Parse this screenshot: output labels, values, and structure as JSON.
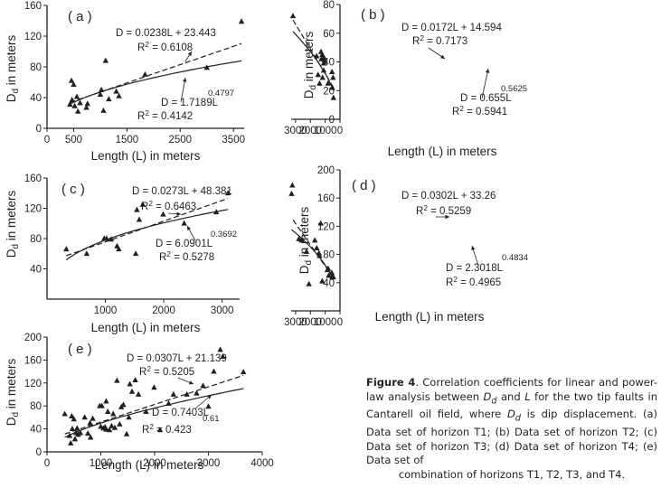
{
  "chart_data": [
    {
      "type": "scatter",
      "panel_label": "( a )",
      "xlabel": "Length (L) in meters",
      "ylabel_main": "D",
      "ylabel_sub": "d",
      "ylabel_rest": " in meters",
      "xlim": [
        0,
        3700
      ],
      "ylim": [
        0,
        160
      ],
      "xticks": [
        0,
        500,
        1500,
        2500,
        3500
      ],
      "xtick_labels": [
        "0",
        "500",
        "1500",
        "2500",
        "3500"
      ],
      "yticks": [
        0,
        40,
        80,
        120,
        160
      ],
      "ytick_labels": [
        "0",
        "40",
        "80",
        "120",
        "160"
      ],
      "points": [
        [
          430,
          31
        ],
        [
          460,
          62
        ],
        [
          470,
          37
        ],
        [
          500,
          57
        ],
        [
          520,
          29
        ],
        [
          560,
          41
        ],
        [
          580,
          22
        ],
        [
          620,
          33
        ],
        [
          740,
          27
        ],
        [
          760,
          32
        ],
        [
          1000,
          44
        ],
        [
          1020,
          50
        ],
        [
          1060,
          23
        ],
        [
          1100,
          88
        ],
        [
          1160,
          38
        ],
        [
          1300,
          48
        ],
        [
          1350,
          42
        ],
        [
          1840,
          70
        ],
        [
          3000,
          79
        ],
        [
          3650,
          139
        ]
      ],
      "linear": {
        "slope": 0.0238,
        "intercept": 23.443,
        "x_range": [
          430,
          3650
        ]
      },
      "power": {
        "coef": 1.7189,
        "exp": 0.4797,
        "x_range": [
          430,
          3650
        ]
      },
      "linear_eq": "D = 0.0238L + 23.443",
      "linear_r2_label": "R",
      "linear_r2_sup": "2",
      "linear_r2_value": " = 0.6108",
      "power_eq": "D = 1.7189L",
      "power_exp_label": "0.4797",
      "power_r2_label": "R",
      "power_r2_sup": "2",
      "power_r2_value": " = 0.4142"
    },
    {
      "type": "scatter",
      "panel_label": "( b )",
      "xlabel": "Length (L) in meters",
      "ylabel_main": "D",
      "ylabel_sub": "d",
      "ylabel_rest": " in meters",
      "xlim": [
        0,
        3300
      ],
      "ylim": [
        0,
        80
      ],
      "xticks": [
        0,
        1000,
        2000,
        3000
      ],
      "xtick_labels": [
        "0",
        "1000",
        "2000",
        "3000"
      ],
      "yticks": [
        0,
        20,
        40,
        60,
        80
      ],
      "ytick_labels": [
        "0",
        "20",
        "40",
        "60",
        "80"
      ],
      "points": [
        [
          440,
          15
        ],
        [
          470,
          29
        ],
        [
          520,
          22
        ],
        [
          540,
          33
        ],
        [
          810,
          25
        ],
        [
          1050,
          41
        ],
        [
          1080,
          43
        ],
        [
          1100,
          39
        ],
        [
          1100,
          34
        ],
        [
          1180,
          29
        ],
        [
          1200,
          45
        ],
        [
          1260,
          42
        ],
        [
          1280,
          47
        ],
        [
          1380,
          25
        ],
        [
          1480,
          31
        ],
        [
          1580,
          44
        ],
        [
          3180,
          72
        ]
      ],
      "linear": {
        "slope": 0.0172,
        "intercept": 14.594,
        "x_range": [
          440,
          3180
        ]
      },
      "power": {
        "coef": 0.655,
        "exp": 0.5625,
        "x_range": [
          440,
          3180
        ]
      },
      "linear_eq": "D = 0.0172L + 14.594",
      "linear_r2_label": "R",
      "linear_r2_sup": "2",
      "linear_r2_value": " = 0.7173",
      "power_eq": "D = 0.655L",
      "power_exp_label": "0.5625",
      "power_r2_label": "R",
      "power_r2_sup": "2",
      "power_r2_value": " = 0.5941"
    },
    {
      "type": "scatter",
      "panel_label": "( c )",
      "xlabel": "Length (L) in meters",
      "ylabel_main": "D",
      "ylabel_sub": "d",
      "ylabel_rest": " in meters",
      "xlim": [
        0,
        3300
      ],
      "ylim": [
        0,
        160
      ],
      "xticks": [
        1000,
        2000,
        3000
      ],
      "xtick_labels": [
        "1000",
        "2000",
        "3000"
      ],
      "yticks": [
        40,
        80,
        120,
        160
      ],
      "ytick_labels": [
        "40",
        "80",
        "120",
        "160"
      ],
      "points": [
        [
          330,
          66
        ],
        [
          680,
          60
        ],
        [
          980,
          80
        ],
        [
          1020,
          80
        ],
        [
          1100,
          79
        ],
        [
          1200,
          70
        ],
        [
          1230,
          66
        ],
        [
          1520,
          60
        ],
        [
          1540,
          118
        ],
        [
          1580,
          105
        ],
        [
          1640,
          125
        ],
        [
          1990,
          112
        ],
        [
          2350,
          100
        ],
        [
          2900,
          115
        ],
        [
          3100,
          140
        ]
      ],
      "linear": {
        "slope": 0.0273,
        "intercept": 48.381,
        "x_range": [
          330,
          3100
        ]
      },
      "power": {
        "coef": 6.0901,
        "exp": 0.3692,
        "x_range": [
          330,
          3100
        ]
      },
      "linear_eq": "D = 0.0273L + 48.381",
      "linear_r2_label": "R",
      "linear_r2_sup": "2",
      "linear_r2_value": " = 0.6463",
      "power_eq": "D = 6.0901L",
      "power_exp_label": "0.3692",
      "power_r2_label": "R",
      "power_r2_sup": "2",
      "power_r2_value": " = 0.5278"
    },
    {
      "type": "scatter",
      "panel_label": "( d )",
      "xlabel": "Length (L) in meters",
      "ylabel_main": "D",
      "ylabel_sub": "d",
      "ylabel_rest": " in meters",
      "xlim": [
        0,
        3300
      ],
      "ylim": [
        0,
        200
      ],
      "xticks": [
        0,
        1000,
        2000,
        3000
      ],
      "xtick_labels": [
        "0",
        "1000",
        "2000",
        "3000"
      ],
      "yticks": [
        40,
        80,
        120,
        160,
        200
      ],
      "ytick_labels": [
        "40",
        "80",
        "120",
        "160",
        "200"
      ],
      "points": [
        [
          450,
          48
        ],
        [
          520,
          48
        ],
        [
          560,
          54
        ],
        [
          760,
          50
        ],
        [
          800,
          60
        ],
        [
          850,
          58
        ],
        [
          1200,
          42
        ],
        [
          1300,
          124
        ],
        [
          1380,
          78
        ],
        [
          1420,
          82
        ],
        [
          1570,
          89
        ],
        [
          1700,
          100
        ],
        [
          2100,
          38
        ],
        [
          2260,
          84
        ],
        [
          2600,
          100
        ],
        [
          2780,
          102
        ],
        [
          3220,
          178
        ],
        [
          3270,
          166
        ]
      ],
      "linear": {
        "slope": 0.0302,
        "intercept": 33.26,
        "x_range": [
          450,
          3270
        ]
      },
      "power": {
        "coef": 2.3018,
        "exp": 0.4834,
        "x_range": [
          450,
          3270
        ]
      },
      "linear_eq": "D = 0.0302L + 33.26",
      "linear_r2_label": "R",
      "linear_r2_sup": "2",
      "linear_r2_value": " = 0.5259",
      "power_eq": "D = 2.3018L",
      "power_exp_label": "0.4834",
      "power_r2_label": "R",
      "power_r2_sup": "2",
      "power_r2_value": " = 0.4965"
    },
    {
      "type": "scatter",
      "panel_label": "( e )",
      "xlabel": "Length (L) in meters",
      "ylabel_main": "D",
      "ylabel_sub": "d",
      "ylabel_rest": " in meters",
      "xlim": [
        0,
        4000
      ],
      "ylim": [
        0,
        200
      ],
      "xticks": [
        0,
        1000,
        2000,
        3000,
        4000
      ],
      "xtick_labels": [
        "0",
        "1000",
        "2000",
        "3000",
        "4000"
      ],
      "yticks": [
        0,
        40,
        80,
        120,
        160,
        200
      ],
      "ytick_labels": [
        "0",
        "40",
        "80",
        "120",
        "160",
        "200"
      ],
      "points": [
        [
          330,
          66
        ],
        [
          420,
          28
        ],
        [
          440,
          15
        ],
        [
          460,
          62
        ],
        [
          470,
          40
        ],
        [
          500,
          57
        ],
        [
          520,
          22
        ],
        [
          540,
          33
        ],
        [
          560,
          41
        ],
        [
          580,
          30
        ],
        [
          620,
          33
        ],
        [
          700,
          60
        ],
        [
          760,
          32
        ],
        [
          800,
          50
        ],
        [
          810,
          25
        ],
        [
          850,
          58
        ],
        [
          980,
          80
        ],
        [
          1000,
          44
        ],
        [
          1020,
          80
        ],
        [
          1050,
          41
        ],
        [
          1080,
          43
        ],
        [
          1100,
          88
        ],
        [
          1100,
          39
        ],
        [
          1130,
          70
        ],
        [
          1160,
          38
        ],
        [
          1200,
          45
        ],
        [
          1230,
          66
        ],
        [
          1260,
          42
        ],
        [
          1300,
          124
        ],
        [
          1350,
          48
        ],
        [
          1380,
          78
        ],
        [
          1420,
          82
        ],
        [
          1480,
          31
        ],
        [
          1520,
          60
        ],
        [
          1540,
          118
        ],
        [
          1580,
          105
        ],
        [
          1640,
          125
        ],
        [
          1700,
          100
        ],
        [
          1840,
          70
        ],
        [
          1990,
          112
        ],
        [
          2100,
          38
        ],
        [
          2260,
          84
        ],
        [
          2350,
          100
        ],
        [
          2600,
          100
        ],
        [
          2780,
          102
        ],
        [
          2900,
          115
        ],
        [
          3000,
          79
        ],
        [
          3100,
          140
        ],
        [
          3220,
          178
        ],
        [
          3270,
          166
        ],
        [
          3650,
          139
        ]
      ],
      "linear": {
        "slope": 0.0307,
        "intercept": 21.139,
        "x_range": [
          330,
          3650
        ]
      },
      "power": {
        "coef": 0.7403,
        "exp": 0.61,
        "x_range": [
          330,
          3650
        ]
      },
      "linear_eq": "D = 0.0307L + 21.139",
      "linear_r2_label": "R",
      "linear_r2_sup": "2",
      "linear_r2_value": " = 0.5205",
      "power_eq": "D = 0.7403L",
      "power_exp_label": "0.61",
      "power_r2_label": "R",
      "power_r2_sup": "2",
      "power_r2_value": " = 0.423"
    }
  ],
  "caption": {
    "figure_label": "Figure 4",
    "text_1": ". Correlation coefficients for linear and power-law analysis between ",
    "dd_main": "D",
    "dd_sub": "d",
    "text_2": " and ",
    "l_symbol": "L",
    "text_3": " for the two tip faults in Cantarell oil field, where ",
    "dd2_main": "D",
    "dd2_sub": "d",
    "text_4": " is dip displacement. (a) Data set of horizon T1; (b) Data set of horizon T2; (c) Data set of horizon T3; (d) Data set of horizon T4; (e) Data set of",
    "text_5": "combination of horizons T1, T2, T3, and T4."
  }
}
